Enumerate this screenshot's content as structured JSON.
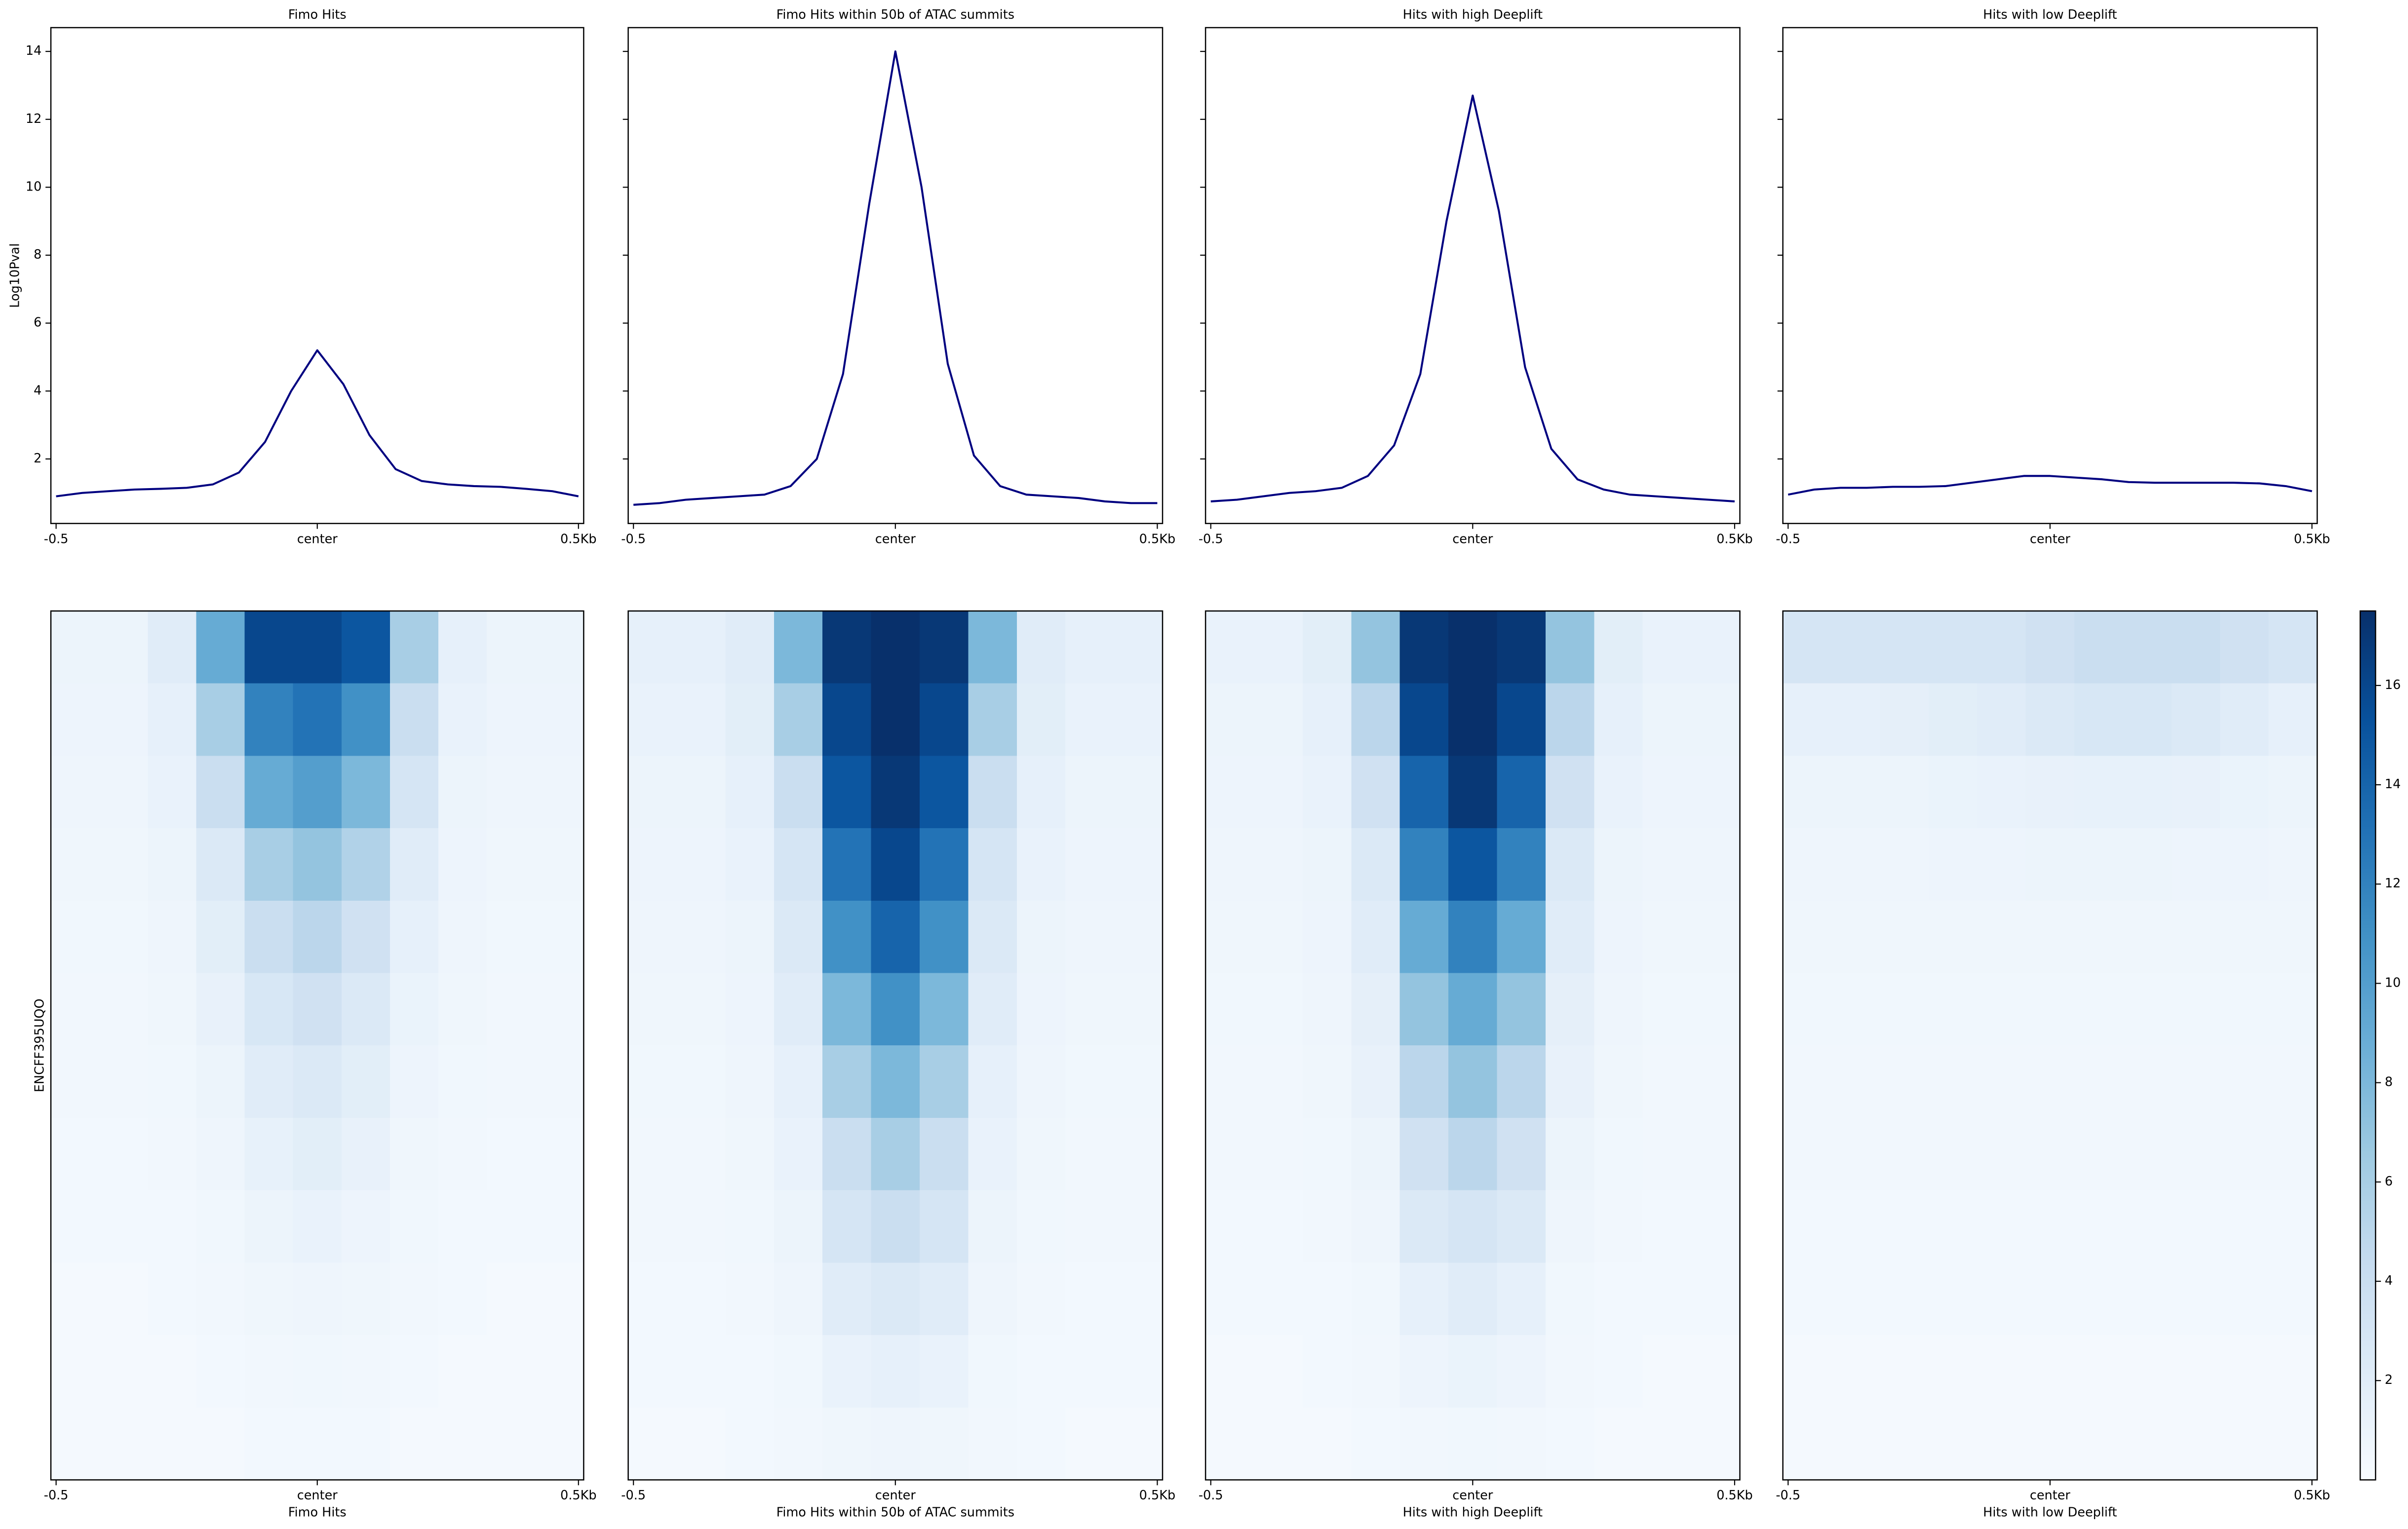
{
  "chart_data": [
    {
      "type": "line",
      "title": "Fimo Hits",
      "ylabel": "Log10Pval",
      "color": "#000080",
      "x": [
        -0.5,
        -0.45,
        -0.4,
        -0.35,
        -0.3,
        -0.25,
        -0.2,
        -0.15,
        -0.1,
        -0.05,
        0,
        0.05,
        0.1,
        0.15,
        0.2,
        0.25,
        0.3,
        0.35,
        0.4,
        0.45,
        0.5
      ],
      "values": [
        0.9,
        1.0,
        1.05,
        1.1,
        1.12,
        1.15,
        1.25,
        1.6,
        2.5,
        4.0,
        5.2,
        4.2,
        2.7,
        1.7,
        1.35,
        1.25,
        1.2,
        1.18,
        1.12,
        1.05,
        0.9
      ],
      "xlim": [
        -0.51,
        0.51
      ],
      "xticks": [
        {
          "value": -0.5,
          "label": "-0.5"
        },
        {
          "value": 0,
          "label": "center"
        },
        {
          "value": 0.5,
          "label": "0.5Kb"
        }
      ],
      "ylim": [
        0.1,
        14.7
      ],
      "yticks": [
        2,
        4,
        6,
        8,
        10,
        12,
        14
      ],
      "sharey": false
    },
    {
      "type": "line",
      "title": "Fimo Hits within 50b of ATAC summits",
      "color": "#000080",
      "x": [
        -0.5,
        -0.45,
        -0.4,
        -0.35,
        -0.3,
        -0.25,
        -0.2,
        -0.15,
        -0.1,
        -0.05,
        0,
        0.05,
        0.1,
        0.15,
        0.2,
        0.25,
        0.3,
        0.35,
        0.4,
        0.45,
        0.5
      ],
      "values": [
        0.65,
        0.7,
        0.8,
        0.85,
        0.9,
        0.95,
        1.2,
        2.0,
        4.5,
        9.5,
        14.0,
        10.0,
        4.8,
        2.1,
        1.2,
        0.95,
        0.9,
        0.85,
        0.75,
        0.7,
        0.7
      ],
      "xlim": [
        -0.51,
        0.51
      ],
      "xticks": [
        {
          "value": -0.5,
          "label": "-0.5"
        },
        {
          "value": 0,
          "label": "center"
        },
        {
          "value": 0.5,
          "label": "0.5Kb"
        }
      ],
      "ylim": [
        0.1,
        14.7
      ],
      "yticks": [
        2,
        4,
        6,
        8,
        10,
        12,
        14
      ],
      "sharey": true
    },
    {
      "type": "line",
      "title": "Hits with high Deeplift",
      "color": "#000080",
      "x": [
        -0.5,
        -0.45,
        -0.4,
        -0.35,
        -0.3,
        -0.25,
        -0.2,
        -0.15,
        -0.1,
        -0.05,
        0,
        0.05,
        0.1,
        0.15,
        0.2,
        0.25,
        0.3,
        0.35,
        0.4,
        0.45,
        0.5
      ],
      "values": [
        0.75,
        0.8,
        0.9,
        1.0,
        1.05,
        1.15,
        1.5,
        2.4,
        4.5,
        9.0,
        12.7,
        9.3,
        4.7,
        2.3,
        1.4,
        1.1,
        0.95,
        0.9,
        0.85,
        0.8,
        0.75
      ],
      "xlim": [
        -0.51,
        0.51
      ],
      "xticks": [
        {
          "value": -0.5,
          "label": "-0.5"
        },
        {
          "value": 0,
          "label": "center"
        },
        {
          "value": 0.5,
          "label": "0.5Kb"
        }
      ],
      "ylim": [
        0.1,
        14.7
      ],
      "yticks": [
        2,
        4,
        6,
        8,
        10,
        12,
        14
      ],
      "sharey": true
    },
    {
      "type": "line",
      "title": "Hits with low Deeplift",
      "color": "#000080",
      "x": [
        -0.5,
        -0.45,
        -0.4,
        -0.35,
        -0.3,
        -0.25,
        -0.2,
        -0.15,
        -0.1,
        -0.05,
        0,
        0.05,
        0.1,
        0.15,
        0.2,
        0.25,
        0.3,
        0.35,
        0.4,
        0.45,
        0.5
      ],
      "values": [
        0.95,
        1.1,
        1.15,
        1.15,
        1.18,
        1.18,
        1.2,
        1.3,
        1.4,
        1.5,
        1.5,
        1.45,
        1.4,
        1.32,
        1.3,
        1.3,
        1.3,
        1.3,
        1.28,
        1.2,
        1.05
      ],
      "xlim": [
        -0.51,
        0.51
      ],
      "xticks": [
        {
          "value": -0.5,
          "label": "-0.5"
        },
        {
          "value": 0,
          "label": "center"
        },
        {
          "value": 0.5,
          "label": "0.5Kb"
        }
      ],
      "ylim": [
        0.1,
        14.7
      ],
      "yticks": [
        2,
        4,
        6,
        8,
        10,
        12,
        14
      ],
      "sharey": true
    },
    {
      "type": "heatmap",
      "xlabel": "Fimo Hits",
      "ylabel": "ENCFF395UQO",
      "xlim": [
        -0.51,
        0.51
      ],
      "xticks": [
        {
          "value": -0.5,
          "label": "-0.5"
        },
        {
          "value": 0,
          "label": "center"
        },
        {
          "value": 0.5,
          "label": "0.5Kb"
        }
      ],
      "zlim": [
        0,
        17.5
      ],
      "colorscale": [
        "#f7fbff",
        "#deebf7",
        "#c6dbef",
        "#9ecae1",
        "#6baed6",
        "#4292c6",
        "#2171b5",
        "#08519c",
        "#08306b"
      ],
      "z": [
        [
          1,
          1,
          2,
          9,
          16,
          16,
          15,
          6,
          1.5,
          1,
          1
        ],
        [
          0.9,
          0.9,
          1.5,
          6,
          12,
          13,
          11,
          4,
          1.2,
          0.9,
          0.9
        ],
        [
          0.8,
          0.8,
          1.2,
          4,
          9,
          10,
          8,
          3,
          1,
          0.8,
          0.8
        ],
        [
          0.7,
          0.7,
          1,
          2.5,
          6,
          7,
          5.5,
          2,
          0.9,
          0.7,
          0.7
        ],
        [
          0.6,
          0.6,
          0.8,
          1.8,
          4,
          5,
          3.5,
          1.5,
          0.8,
          0.6,
          0.6
        ],
        [
          0.5,
          0.5,
          0.7,
          1.3,
          2.8,
          3.5,
          2.5,
          1.1,
          0.7,
          0.5,
          0.5
        ],
        [
          0.5,
          0.5,
          0.6,
          1,
          2,
          2.5,
          1.8,
          0.9,
          0.6,
          0.5,
          0.5
        ],
        [
          0.4,
          0.4,
          0.5,
          0.8,
          1.4,
          1.8,
          1.3,
          0.7,
          0.5,
          0.4,
          0.4
        ],
        [
          0.4,
          0.4,
          0.4,
          0.6,
          1,
          1.2,
          0.9,
          0.6,
          0.4,
          0.4,
          0.4
        ],
        [
          0.3,
          0.3,
          0.4,
          0.5,
          0.7,
          0.8,
          0.7,
          0.5,
          0.4,
          0.3,
          0.3
        ],
        [
          0.3,
          0.3,
          0.3,
          0.4,
          0.5,
          0.6,
          0.5,
          0.4,
          0.3,
          0.3,
          0.3
        ],
        [
          0.3,
          0.3,
          0.3,
          0.3,
          0.4,
          0.4,
          0.4,
          0.3,
          0.3,
          0.3,
          0.3
        ]
      ]
    },
    {
      "type": "heatmap",
      "xlabel": "Fimo Hits within 50b of ATAC summits",
      "xlim": [
        -0.51,
        0.51
      ],
      "xticks": [
        {
          "value": -0.5,
          "label": "-0.5"
        },
        {
          "value": 0,
          "label": "center"
        },
        {
          "value": 0.5,
          "label": "0.5Kb"
        }
      ],
      "zlim": [
        0,
        17.5
      ],
      "colorscale": [
        "#f7fbff",
        "#deebf7",
        "#c6dbef",
        "#9ecae1",
        "#6baed6",
        "#4292c6",
        "#2171b5",
        "#08519c",
        "#08306b"
      ],
      "z": [
        [
          1.5,
          1.5,
          2,
          8,
          17,
          17.5,
          17,
          8,
          2,
          1.5,
          1.5
        ],
        [
          1.2,
          1.2,
          1.8,
          6,
          16,
          17.5,
          16,
          6,
          1.8,
          1.2,
          1.2
        ],
        [
          1,
          1,
          1.5,
          4,
          15,
          17,
          15,
          4,
          1.5,
          1,
          1
        ],
        [
          0.9,
          0.9,
          1.2,
          3,
          13,
          16,
          13,
          3,
          1.2,
          0.9,
          0.9
        ],
        [
          0.8,
          0.8,
          1,
          2.5,
          11,
          14,
          11,
          2.5,
          1,
          0.8,
          0.8
        ],
        [
          0.7,
          0.7,
          0.9,
          2,
          8,
          11,
          8,
          2,
          0.9,
          0.7,
          0.7
        ],
        [
          0.6,
          0.6,
          0.8,
          1.5,
          6,
          8,
          6,
          1.5,
          0.8,
          0.6,
          0.6
        ],
        [
          0.5,
          0.5,
          0.7,
          1.2,
          4,
          6,
          4,
          1.2,
          0.7,
          0.5,
          0.5
        ],
        [
          0.5,
          0.5,
          0.6,
          1,
          3,
          4,
          3,
          1,
          0.6,
          0.5,
          0.5
        ],
        [
          0.4,
          0.4,
          0.5,
          0.8,
          2,
          2.5,
          2,
          0.8,
          0.5,
          0.4,
          0.4
        ],
        [
          0.4,
          0.4,
          0.4,
          0.6,
          1.2,
          1.5,
          1.2,
          0.6,
          0.4,
          0.4,
          0.4
        ],
        [
          0.3,
          0.3,
          0.4,
          0.5,
          0.7,
          0.8,
          0.7,
          0.5,
          0.4,
          0.3,
          0.3
        ]
      ]
    },
    {
      "type": "heatmap",
      "xlabel": "Hits with high Deeplift",
      "xlim": [
        -0.51,
        0.51
      ],
      "xticks": [
        {
          "value": -0.5,
          "label": "-0.5"
        },
        {
          "value": 0,
          "label": "center"
        },
        {
          "value": 0.5,
          "label": "0.5Kb"
        }
      ],
      "zlim": [
        0,
        17.5
      ],
      "colorscale": [
        "#f7fbff",
        "#deebf7",
        "#c6dbef",
        "#9ecae1",
        "#6baed6",
        "#4292c6",
        "#2171b5",
        "#08519c",
        "#08306b"
      ],
      "z": [
        [
          1.2,
          1.2,
          1.8,
          7,
          17,
          17.5,
          17,
          7,
          1.8,
          1.2,
          1.2
        ],
        [
          1,
          1,
          1.5,
          5,
          16,
          17.5,
          16,
          5,
          1.5,
          1,
          1
        ],
        [
          0.9,
          0.9,
          1.2,
          3.5,
          14,
          17,
          14,
          3.5,
          1.2,
          0.9,
          0.9
        ],
        [
          0.8,
          0.8,
          1,
          2.5,
          12,
          15,
          12,
          2.5,
          1,
          0.8,
          0.8
        ],
        [
          0.7,
          0.7,
          0.9,
          2,
          9,
          12,
          9,
          2,
          0.9,
          0.7,
          0.7
        ],
        [
          0.6,
          0.6,
          0.8,
          1.6,
          7,
          9,
          7,
          1.6,
          0.8,
          0.6,
          0.6
        ],
        [
          0.5,
          0.5,
          0.7,
          1.3,
          5,
          7,
          5,
          1.3,
          0.7,
          0.5,
          0.5
        ],
        [
          0.5,
          0.5,
          0.6,
          1,
          3.5,
          5,
          3.5,
          1,
          0.6,
          0.5,
          0.5
        ],
        [
          0.4,
          0.4,
          0.5,
          0.8,
          2.5,
          3,
          2.5,
          0.8,
          0.5,
          0.4,
          0.4
        ],
        [
          0.4,
          0.4,
          0.4,
          0.6,
          1.5,
          2,
          1.5,
          0.6,
          0.4,
          0.4,
          0.4
        ],
        [
          0.3,
          0.3,
          0.4,
          0.5,
          0.9,
          1.1,
          0.9,
          0.5,
          0.4,
          0.3,
          0.3
        ],
        [
          0.3,
          0.3,
          0.3,
          0.4,
          0.5,
          0.6,
          0.5,
          0.4,
          0.3,
          0.3,
          0.3
        ]
      ]
    },
    {
      "type": "heatmap",
      "xlabel": "Hits with low Deeplift",
      "colorbar": true,
      "xlim": [
        -0.51,
        0.51
      ],
      "xticks": [
        {
          "value": -0.5,
          "label": "-0.5"
        },
        {
          "value": 0,
          "label": "center"
        },
        {
          "value": 0.5,
          "label": "0.5Kb"
        }
      ],
      "zlim": [
        0,
        17.5
      ],
      "zticks": [
        2,
        4,
        6,
        8,
        10,
        12,
        14,
        16
      ],
      "colorscale": [
        "#f7fbff",
        "#deebf7",
        "#c6dbef",
        "#9ecae1",
        "#6baed6",
        "#4292c6",
        "#2171b5",
        "#08519c",
        "#08306b"
      ],
      "z": [
        [
          3,
          3,
          3,
          3,
          3,
          3.5,
          4,
          4,
          4,
          3.5,
          3
        ],
        [
          1.5,
          1.5,
          1.6,
          1.8,
          2,
          2.5,
          2.8,
          2.8,
          2.5,
          2,
          1.5
        ],
        [
          1,
          1,
          1,
          1.1,
          1.2,
          1.3,
          1.4,
          1.4,
          1.3,
          1.1,
          1
        ],
        [
          0.8,
          0.8,
          0.8,
          0.9,
          0.9,
          1,
          1,
          1,
          0.9,
          0.9,
          0.8
        ],
        [
          0.7,
          0.7,
          0.7,
          0.7,
          0.7,
          0.7,
          0.7,
          0.7,
          0.7,
          0.7,
          0.7
        ],
        [
          0.6,
          0.6,
          0.6,
          0.6,
          0.6,
          0.6,
          0.6,
          0.6,
          0.6,
          0.6,
          0.6
        ],
        [
          0.5,
          0.5,
          0.5,
          0.5,
          0.5,
          0.5,
          0.5,
          0.5,
          0.5,
          0.5,
          0.5
        ],
        [
          0.5,
          0.5,
          0.5,
          0.5,
          0.5,
          0.5,
          0.5,
          0.5,
          0.5,
          0.5,
          0.5
        ],
        [
          0.4,
          0.4,
          0.4,
          0.4,
          0.4,
          0.4,
          0.4,
          0.4,
          0.4,
          0.4,
          0.4
        ],
        [
          0.4,
          0.4,
          0.4,
          0.4,
          0.4,
          0.4,
          0.4,
          0.4,
          0.4,
          0.4,
          0.4
        ],
        [
          0.3,
          0.3,
          0.3,
          0.3,
          0.3,
          0.3,
          0.3,
          0.3,
          0.3,
          0.3,
          0.3
        ],
        [
          0.3,
          0.3,
          0.3,
          0.3,
          0.3,
          0.3,
          0.3,
          0.3,
          0.3,
          0.3,
          0.3
        ]
      ]
    }
  ]
}
